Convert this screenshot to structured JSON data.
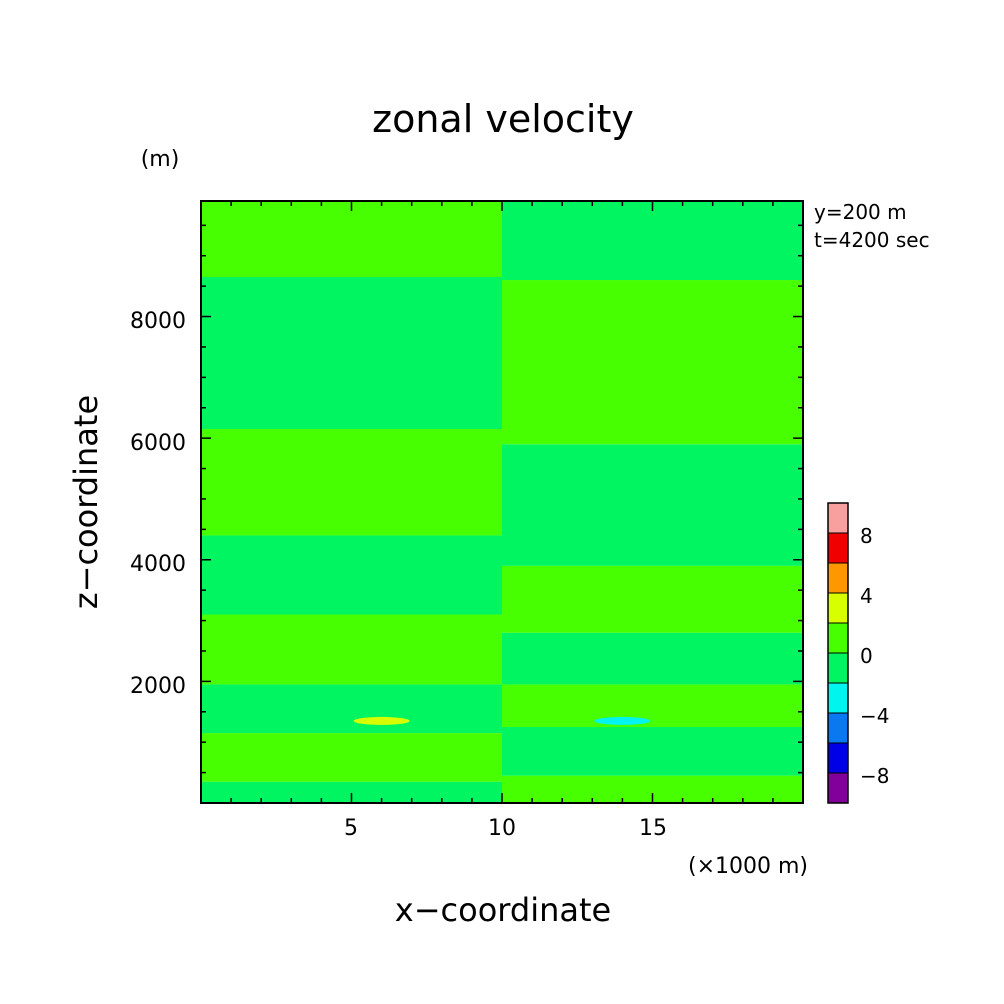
{
  "chart_data": {
    "type": "heatmap",
    "title": "zonal velocity",
    "xlabel": "x−coordinate",
    "ylabel": "z−coordinate",
    "x_units": "(×1000 m)",
    "y_units": "(m)",
    "xlim": [
      0,
      20
    ],
    "ylim": [
      0,
      9900
    ],
    "x_ticks": [
      5,
      10,
      15
    ],
    "y_ticks": [
      2000,
      4000,
      6000,
      8000
    ],
    "x_tick_labels": [
      "5",
      "10",
      "15"
    ],
    "y_tick_labels": [
      "2000",
      "4000",
      "6000",
      "8000"
    ],
    "annotations": [
      "y=200 m",
      "t=4200 sec"
    ],
    "colorbar": {
      "levels": [
        -10,
        -8,
        -6,
        -4,
        -2,
        0,
        2,
        4,
        6,
        8,
        10
      ],
      "colors": [
        "#800099",
        "#0000e6",
        "#0a78f0",
        "#00f5f0",
        "#00f560",
        "#48ff00",
        "#d8ff00",
        "#ff9800",
        "#f00000",
        "#f8a0a0"
      ],
      "tick_values": [
        -8,
        -4,
        0,
        4,
        8
      ],
      "tick_labels": [
        "−8",
        "−4",
        "0",
        "4",
        "8"
      ]
    },
    "field_colors": {
      "zero_to_plus2": "#48ff00",
      "minus2_to_zero": "#00f560",
      "plus2_to_plus4": "#d8ff00",
      "minus4_to_minus2": "#00f5f0"
    },
    "bands_left": [
      {
        "z_min": 0,
        "z_max": 350,
        "level": "minus2_to_zero"
      },
      {
        "z_min": 350,
        "z_max": 1150,
        "level": "zero_to_plus2"
      },
      {
        "z_min": 1150,
        "z_max": 1950,
        "level": "minus2_to_zero"
      },
      {
        "z_min": 1950,
        "z_max": 3100,
        "level": "zero_to_plus2"
      },
      {
        "z_min": 3100,
        "z_max": 4400,
        "level": "minus2_to_zero"
      },
      {
        "z_min": 4400,
        "z_max": 6150,
        "level": "zero_to_plus2"
      },
      {
        "z_min": 6150,
        "z_max": 8650,
        "level": "minus2_to_zero"
      },
      {
        "z_min": 8650,
        "z_max": 9900,
        "level": "zero_to_plus2"
      }
    ],
    "bands_right": [
      {
        "z_min": 0,
        "z_max": 450,
        "level": "zero_to_plus2"
      },
      {
        "z_min": 450,
        "z_max": 1250,
        "level": "minus2_to_zero"
      },
      {
        "z_min": 1250,
        "z_max": 1950,
        "level": "zero_to_plus2"
      },
      {
        "z_min": 1950,
        "z_max": 2800,
        "level": "minus2_to_zero"
      },
      {
        "z_min": 2800,
        "z_max": 3900,
        "level": "zero_to_plus2"
      },
      {
        "z_min": 3900,
        "z_max": 5900,
        "level": "minus2_to_zero"
      },
      {
        "z_min": 5900,
        "z_max": 8600,
        "level": "zero_to_plus2"
      },
      {
        "z_min": 8600,
        "z_max": 9900,
        "level": "minus2_to_zero"
      }
    ],
    "local_features": [
      {
        "x": 6.0,
        "z": 1350,
        "level": "plus2_to_plus4"
      },
      {
        "x": 14.0,
        "z": 1350,
        "level": "minus4_to_minus2"
      }
    ]
  }
}
